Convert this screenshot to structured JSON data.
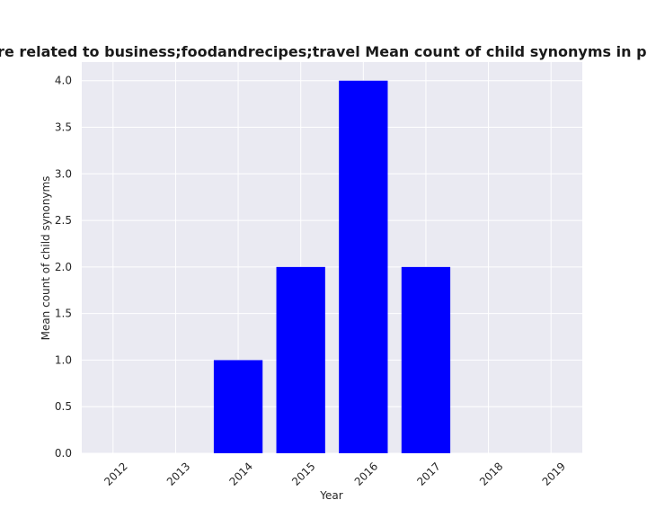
{
  "chart_data": {
    "type": "bar",
    "title": "ories are related to business;foodandrecipes;travel Mean count of child synonyms in privacy po",
    "xlabel": "Year",
    "ylabel": "Mean count of child synonyms",
    "categories": [
      "2012",
      "2013",
      "2014",
      "2015",
      "2016",
      "2017",
      "2018",
      "2019"
    ],
    "values": [
      0,
      0,
      1,
      2,
      4,
      2,
      0,
      0
    ],
    "ylim": [
      0,
      4.2
    ],
    "yticks": [
      "0.0",
      "0.5",
      "1.0",
      "1.5",
      "2.0",
      "2.5",
      "3.0",
      "3.5",
      "4.0"
    ],
    "grid": true,
    "bar_color": "#0000ff",
    "plot_background": "#eaeaf2",
    "grid_color": "#ffffff"
  }
}
